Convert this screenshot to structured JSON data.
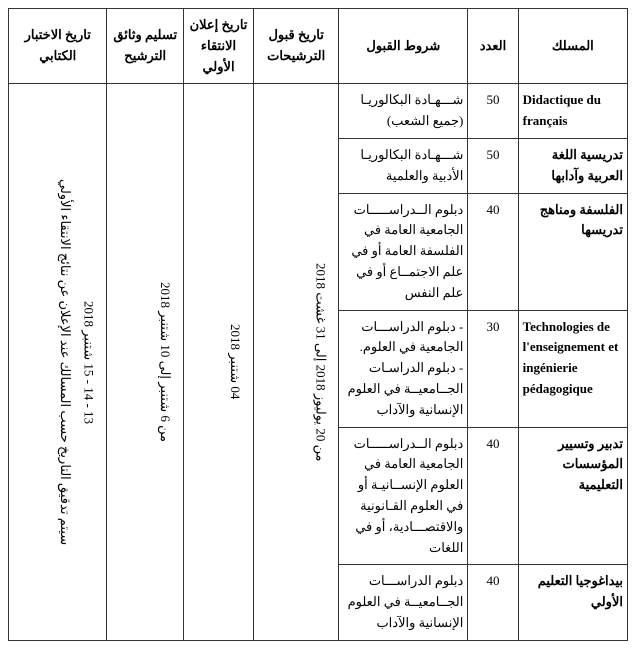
{
  "headers": {
    "maslak": "المسلك",
    "adad": "العدد",
    "shurut": "شروط القبول",
    "qubul": "تاريخ قبول الترشيحات",
    "ilan": "تاريخ إعلان الانتقاء الأولي",
    "taslim": "تسليم وثائق الترشيح",
    "ikhtibar": "تاريخ الاختبار الكتابي"
  },
  "rows": [
    {
      "maslak": "Didactique du français",
      "maslak_lang": "fr",
      "adad": "50",
      "shurut": "شـــهـادة البكالوريـا (جميع الشعب)"
    },
    {
      "maslak": "تدريسية اللغة العربية وآدابها",
      "maslak_lang": "ar",
      "adad": "50",
      "shurut": "شـــهـادة البكالوريـا الأدبية والعلمية"
    },
    {
      "maslak": "الفلسفة ومناهج تدريسها",
      "maslak_lang": "ar",
      "adad": "40",
      "shurut": "دبلوم الــدراســـــات الجامعية العامة في الفلسفة العامة أو في علم الاجتمــاع أو في علم النفس"
    },
    {
      "maslak": "Technologies de l'enseignement et ingénierie pédagogique",
      "maslak_lang": "fr",
      "adad": "30",
      "shurut": "- دبلوم الدراســـات الجامعية في العلوم.\n- دبلوم الدراسـات الجــامعيــة في العلوم الإنسانية والآداب"
    },
    {
      "maslak": "تدبير وتسيير المؤسسات التعليمية",
      "maslak_lang": "ar",
      "adad": "40",
      "shurut": "دبلوم الــدراســـــات الجامعية العامة في العلوم الإنســانيـة أو في العلوم القـانونية والاقتصـــادية، أو في اللغات"
    },
    {
      "maslak": "بيداغوجيا التعليم الأولي",
      "maslak_lang": "ar",
      "adad": "40",
      "shurut": "دبلوم الدراســـات الجــامعيــة في العلوم الإنسانية والآداب"
    }
  ],
  "merged": {
    "qubul": "من 20 يوليوز 2018 إلى 31 غشت 2018",
    "ilan": "04 شتنبر 2018",
    "taslim": "من 6 شتنبر إلى 10 شتنبر 2018",
    "ikhtibar": "13 - 14 - 15 شتنبر 2018\nسيتم تدقيق التاريخ حسب المسالك عند الإعلان عن نتائج الانتقاء الأولي"
  },
  "style": {
    "font_size_body": 13,
    "font_size_header": 13,
    "border_color": "#333333",
    "background": "#ffffff",
    "text_color": "#000000"
  }
}
